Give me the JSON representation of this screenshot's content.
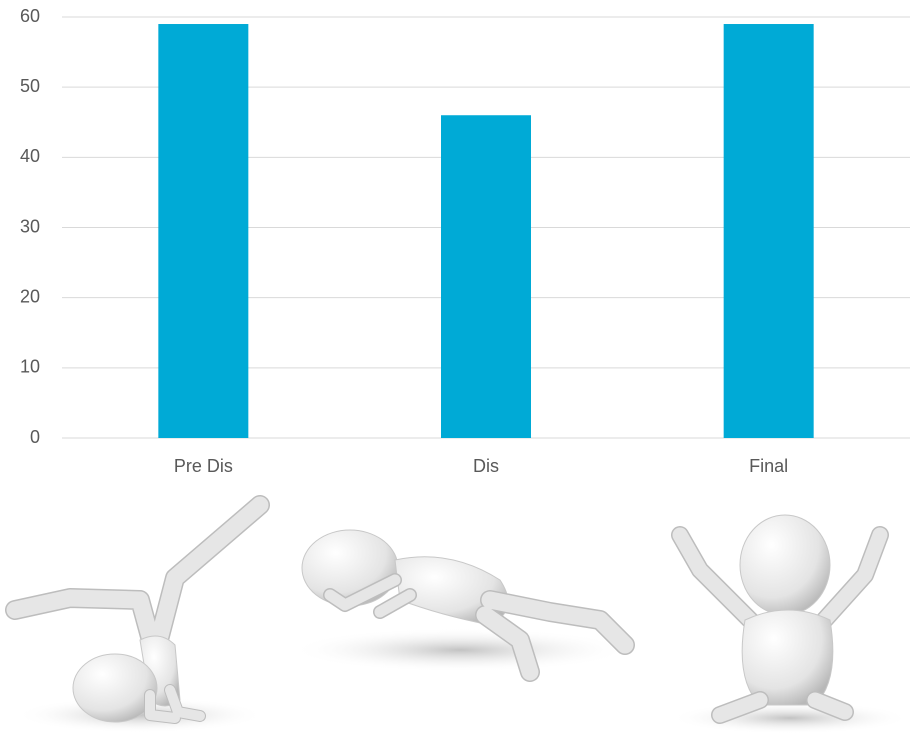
{
  "chart_data": {
    "type": "bar",
    "categories": [
      "Pre Dis",
      "Dis",
      "Final"
    ],
    "values": [
      59,
      46,
      59
    ],
    "color": "#00aad6",
    "ylim": [
      0,
      60
    ],
    "yticks": [
      0,
      10,
      20,
      30,
      40,
      50,
      60
    ],
    "grid": true
  }
}
